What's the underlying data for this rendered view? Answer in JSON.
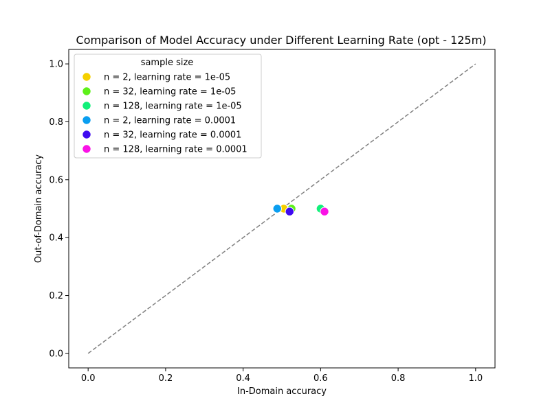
{
  "chart_data": {
    "type": "scatter",
    "title": "Comparison of Model Accuracy under Different Learning Rate (opt - 125m)",
    "xlabel": "In-Domain accuracy",
    "ylabel": "Out-of-Domain accuracy",
    "xlim": [
      -0.05,
      1.05
    ],
    "ylim": [
      -0.05,
      1.05
    ],
    "xticks": [
      "0.0",
      "0.2",
      "0.4",
      "0.6",
      "0.8",
      "1.0"
    ],
    "yticks": [
      "0.0",
      "0.2",
      "0.4",
      "0.6",
      "0.8",
      "1.0"
    ],
    "grid": false,
    "legend": {
      "title": "sample size",
      "placement": "upper-left"
    },
    "reference_line": {
      "style": "dashed",
      "color": "#808080",
      "from": [
        0,
        0
      ],
      "to": [
        1,
        1
      ]
    },
    "series": [
      {
        "name": "n = 2, learning rate = 1e-05",
        "color": "#f5d000",
        "points": [
          {
            "x": 0.505,
            "y": 0.5
          }
        ]
      },
      {
        "name": "n = 32, learning rate = 1e-05",
        "color": "#5ef01a",
        "points": [
          {
            "x": 0.525,
            "y": 0.5
          }
        ]
      },
      {
        "name": "n = 128, learning rate = 1e-05",
        "color": "#12f07a",
        "points": [
          {
            "x": 0.6,
            "y": 0.5
          }
        ]
      },
      {
        "name": "n = 2, learning rate = 0.0001",
        "color": "#0a9ef0",
        "points": [
          {
            "x": 0.488,
            "y": 0.5
          }
        ]
      },
      {
        "name": "n = 32, learning rate = 0.0001",
        "color": "#3f0af0",
        "points": [
          {
            "x": 0.52,
            "y": 0.49
          }
        ]
      },
      {
        "name": "n = 128, learning rate = 0.0001",
        "color": "#fa12e6",
        "points": [
          {
            "x": 0.61,
            "y": 0.49
          }
        ]
      }
    ]
  }
}
